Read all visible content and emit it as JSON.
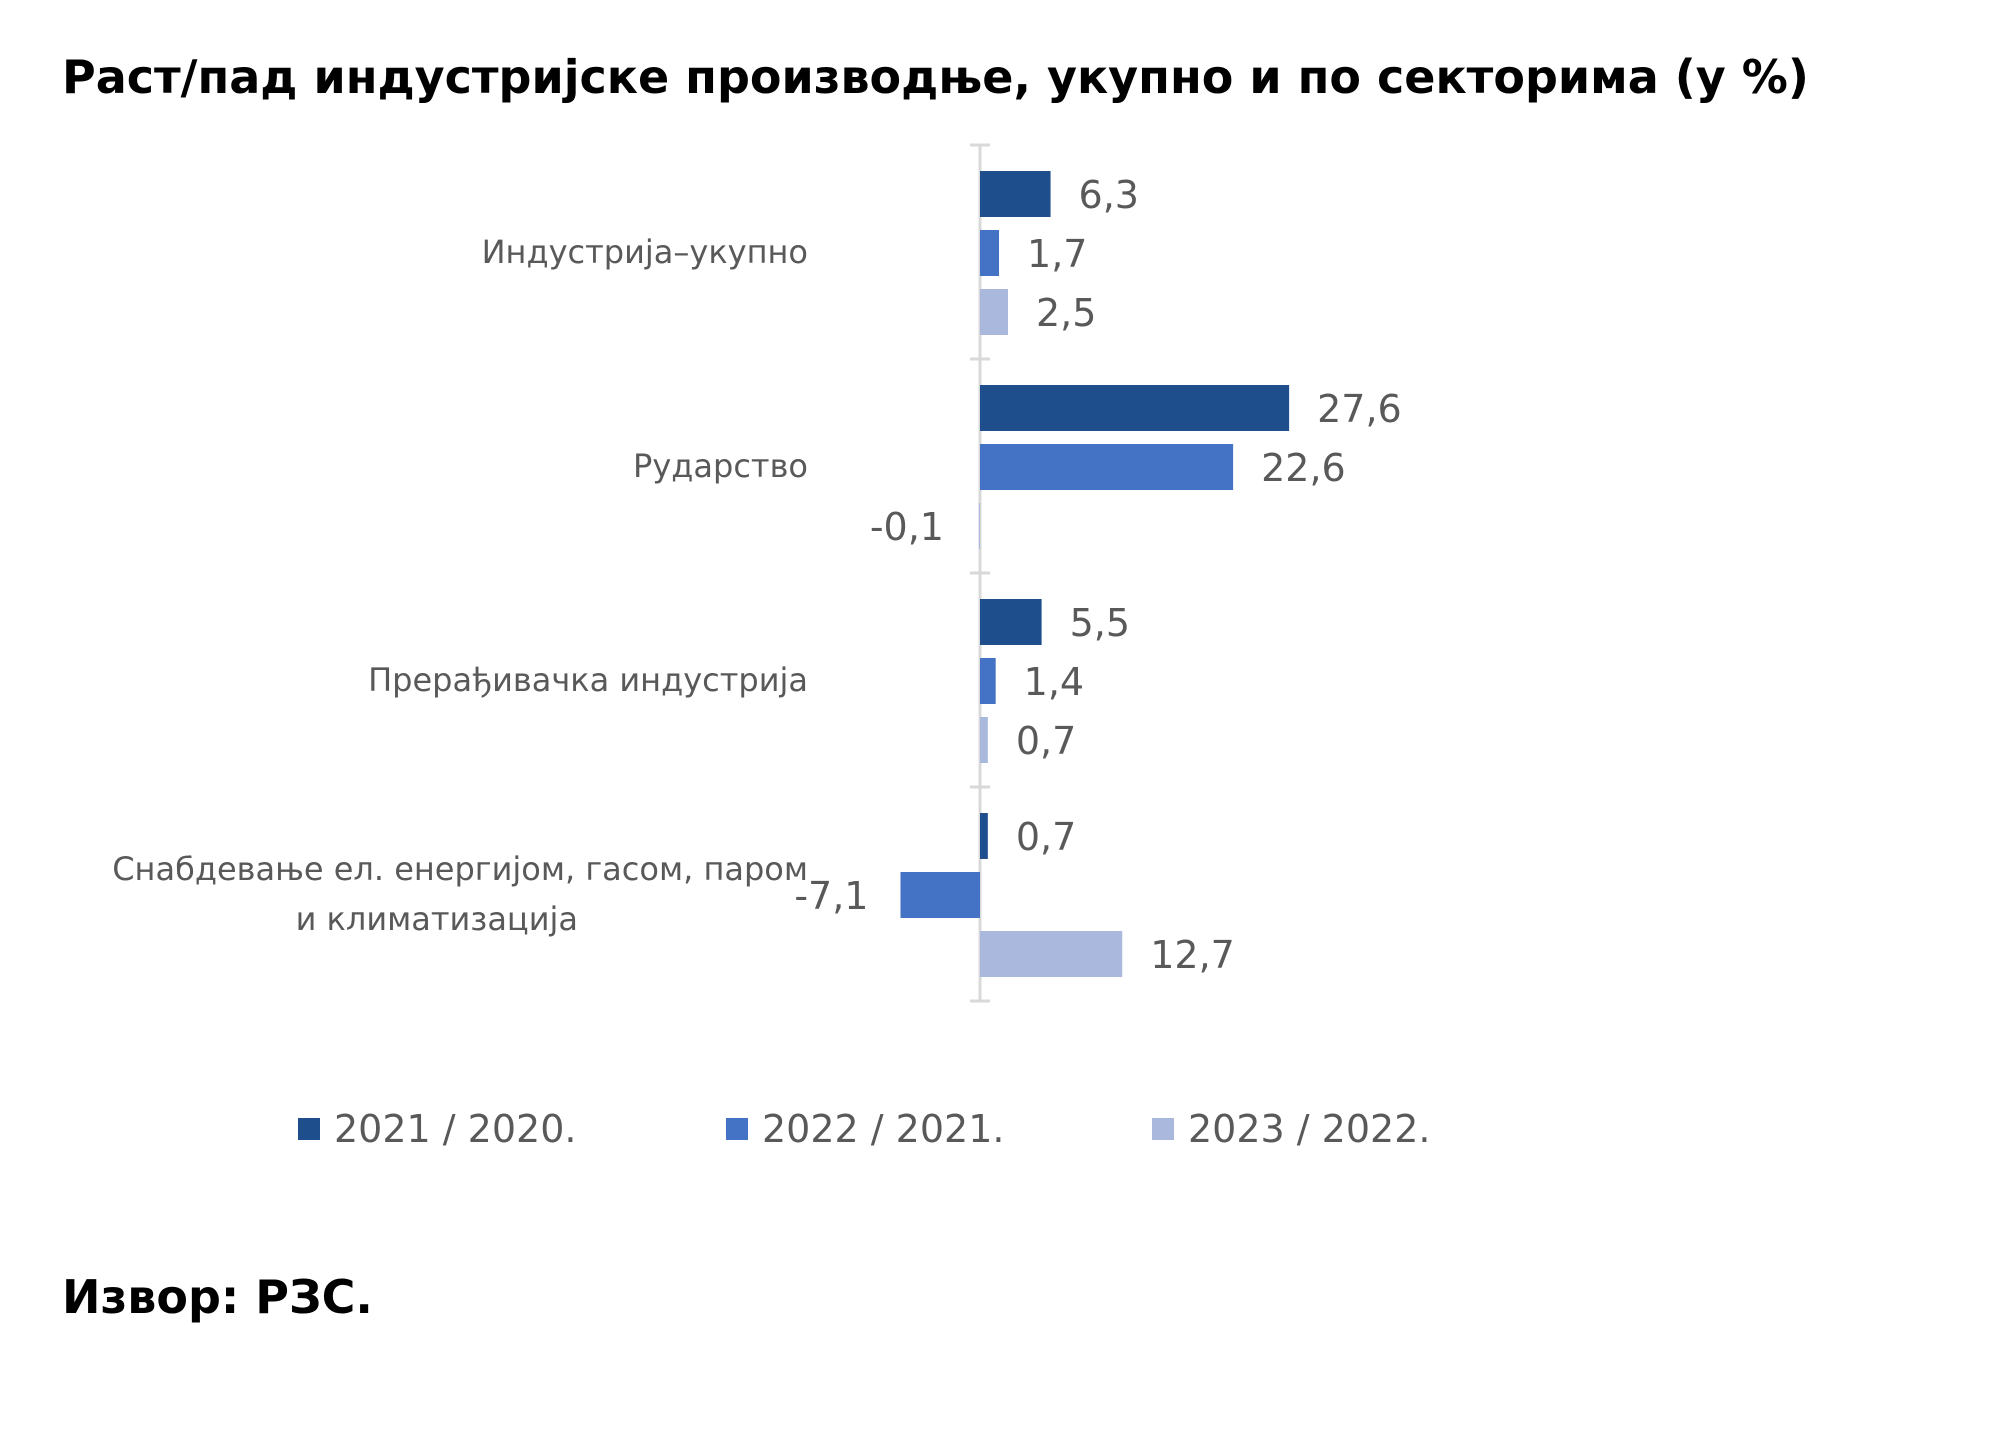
{
  "chart_data": {
    "type": "bar",
    "orientation": "horizontal",
    "title": "Раст/пад индустријске производње, укупно и по секторима (у %)",
    "categories": [
      "Индустрија–укупно",
      "Рударство",
      "Прерађивачка индустрија",
      [
        "Снабдевање ел. енергијом, гасом, паром",
        "и климатизација"
      ]
    ],
    "series": [
      {
        "name": "2021 / 2020.",
        "color": "#1f4e8c",
        "values": [
          6.3,
          27.6,
          5.5,
          0.7
        ],
        "labels": [
          "6,3",
          "27,6",
          "5,5",
          "0,7"
        ]
      },
      {
        "name": "2022 / 2021.",
        "color": "#4472c4",
        "values": [
          1.7,
          22.6,
          1.4,
          -7.1
        ],
        "labels": [
          "1,7",
          "22,6",
          "1,4",
          "-7,1"
        ]
      },
      {
        "name": "2023 / 2022.",
        "color": "#a9b8dc",
        "values": [
          2.5,
          -0.1,
          0.7,
          12.7
        ],
        "labels": [
          "2,5",
          "-0,1",
          "0,7",
          "12,7"
        ]
      }
    ],
    "xlim": [
      -8,
      30
    ],
    "grid": false,
    "legend_position": "bottom"
  },
  "footer": {
    "source": "Извор: РЗС."
  }
}
